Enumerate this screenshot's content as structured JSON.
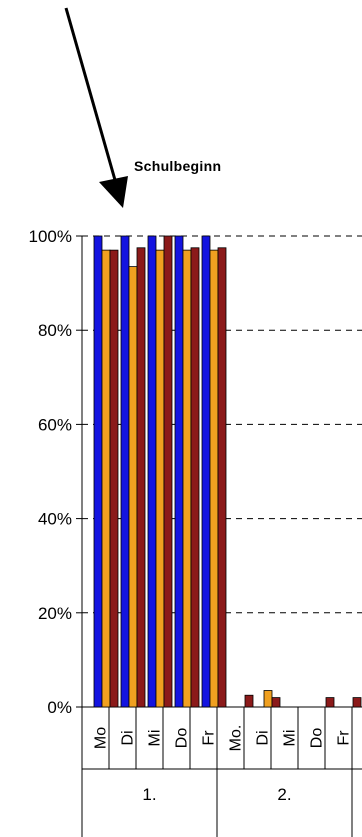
{
  "chart_data": {
    "type": "bar",
    "title": "",
    "xlabel": "",
    "ylabel": "",
    "ylim": [
      0,
      100
    ],
    "yticks": [
      "0%",
      "20%",
      "40%",
      "60%",
      "80%",
      "100%"
    ],
    "grid": "horizontal dashed",
    "legend": "none",
    "annotation": "Schulbeginn",
    "groups": [
      {
        "label": "1.",
        "days": [
          "Mo",
          "Di",
          "Mi",
          "Do",
          "Fr"
        ]
      },
      {
        "label": "2.",
        "days": [
          "Mo.",
          "Di",
          "Mi",
          "Do",
          "Fr"
        ]
      }
    ],
    "series": [
      {
        "color": "#1414e0",
        "values": [
          100,
          100,
          100,
          100,
          100,
          0,
          0,
          0,
          0,
          0
        ]
      },
      {
        "color": "#f0a020",
        "values": [
          97,
          93.5,
          97,
          97,
          97,
          0,
          3.5,
          0,
          0,
          0
        ]
      },
      {
        "color": "#8b1a1a",
        "values": [
          97,
          97.5,
          100,
          97.5,
          97.5,
          2.5,
          2,
          0,
          2,
          2
        ]
      }
    ]
  }
}
